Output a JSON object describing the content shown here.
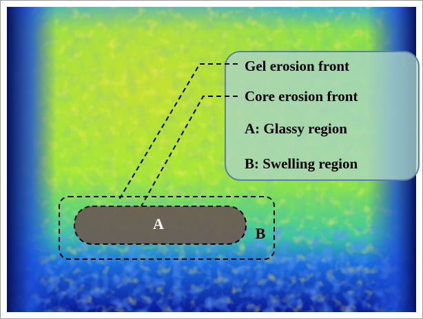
{
  "legend": {
    "items": [
      "Gel erosion front",
      "Core erosion front",
      "A: Glassy region",
      "B: Swelling region"
    ]
  },
  "regions": {
    "a": "A",
    "b": "B"
  }
}
